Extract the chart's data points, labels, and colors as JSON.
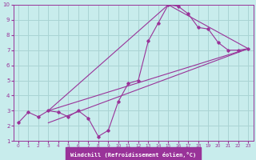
{
  "bg_color": "#c8ecec",
  "grid_color": "#aad4d4",
  "line_color": "#993399",
  "xlim": [
    -0.5,
    23.5
  ],
  "ylim": [
    1,
    10
  ],
  "xticks": [
    0,
    1,
    2,
    3,
    4,
    5,
    6,
    7,
    8,
    9,
    10,
    11,
    12,
    13,
    14,
    15,
    16,
    17,
    18,
    19,
    20,
    21,
    22,
    23
  ],
  "yticks": [
    1,
    2,
    3,
    4,
    5,
    6,
    7,
    8,
    9,
    10
  ],
  "series1_x": [
    0,
    1,
    2,
    3,
    4,
    5,
    6,
    7,
    8,
    9,
    10,
    11,
    12,
    13,
    14,
    15,
    16,
    17,
    18,
    19,
    20,
    21,
    22,
    23
  ],
  "series1_y": [
    2.2,
    2.9,
    2.6,
    3.0,
    2.9,
    2.6,
    3.0,
    2.5,
    1.3,
    1.7,
    3.6,
    4.8,
    5.0,
    7.6,
    8.8,
    10.0,
    9.9,
    9.4,
    8.5,
    8.4,
    7.5,
    7.0,
    7.0,
    7.1
  ],
  "trend1_x": [
    3,
    23
  ],
  "trend1_y": [
    3.0,
    7.1
  ],
  "trend2_x": [
    3,
    15,
    23
  ],
  "trend2_y": [
    3.0,
    10.0,
    7.1
  ],
  "trend3_x": [
    3,
    23
  ],
  "trend3_y": [
    2.2,
    7.1
  ],
  "xlabel": "Windchill (Refroidissement éolien,°C)",
  "xlabel_color": "#ffffff",
  "xlabel_bg": "#993399"
}
